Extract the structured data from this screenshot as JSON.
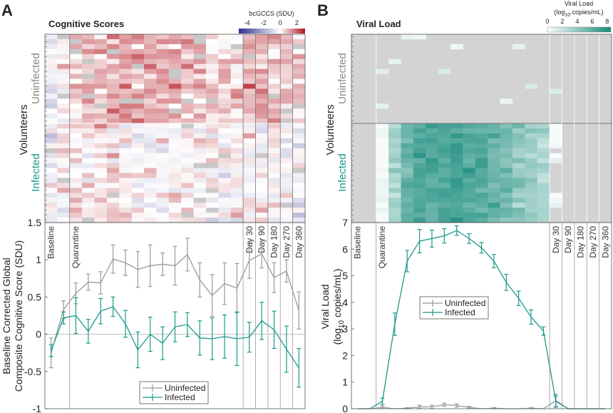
{
  "panels": {
    "a_label": "A",
    "b_label": "B"
  },
  "chart_data": [
    {
      "type": "heatmap",
      "panel": "A",
      "title": "Cognitive Scores",
      "colorbar_title": "bcGCCS (SDU)",
      "colorbar_ticks": [
        "-4",
        "-2",
        "0",
        "2"
      ],
      "colorbar_range": [
        -5,
        3
      ],
      "ylabel": "Volunteers",
      "groups": [
        "Uninfected",
        "Infected"
      ],
      "rows_per_group": [
        18,
        20
      ],
      "note": "cell values approximated from group means per timepoint"
    },
    {
      "type": "line",
      "panel": "A",
      "ylabel_line1": "Baseline Corrected Global",
      "ylabel_line2": "Composite Cognitive Score (SDU)",
      "ylim": [
        -1,
        1.5
      ],
      "yticks": [
        "1.5",
        "1",
        "0.5",
        "0",
        "-0.5",
        "-1"
      ],
      "ytick_values": [
        1.5,
        1,
        0.5,
        0,
        -0.5,
        -1
      ],
      "event_labels": [
        {
          "label": "Baseline",
          "index": 0
        },
        {
          "label": "Quarantine",
          "index": 2
        },
        {
          "label": "Day 30",
          "index": 16
        },
        {
          "label": "Day 90",
          "index": 17
        },
        {
          "label": "Day 180",
          "index": 18
        },
        {
          "label": "Day 270",
          "index": 19
        },
        {
          "label": "Day 360",
          "index": 20
        }
      ],
      "legend": "bottom-center",
      "series": [
        {
          "name": "Uninfected",
          "color": "#999999",
          "values": [
            -0.25,
            0.33,
            0.55,
            0.7,
            0.69,
            1.01,
            0.96,
            0.87,
            0.92,
            0.94,
            0.92,
            1.07,
            0.73,
            0.52,
            0.68,
            0.62,
            0.99,
            1.08,
            0.76,
            0.85,
            0.32
          ],
          "errors": [
            0.2,
            0.12,
            0.14,
            0.11,
            0.15,
            0.19,
            0.17,
            0.24,
            0.28,
            0.15,
            0.26,
            0.22,
            0.23,
            0.28,
            0.28,
            0.33,
            0.24,
            0.19,
            0.2,
            0.15,
            0.25
          ]
        },
        {
          "name": "Infected",
          "color": "#1b9a8a",
          "values": [
            -0.22,
            0.22,
            0.25,
            0.04,
            0.31,
            0.37,
            0.14,
            -0.21,
            0.0,
            -0.12,
            0.1,
            0.13,
            -0.05,
            -0.06,
            -0.03,
            -0.06,
            -0.04,
            0.18,
            0.06,
            -0.2,
            -0.45
          ],
          "errors": [
            0.08,
            0.08,
            0.24,
            0.16,
            0.17,
            0.13,
            0.18,
            0.24,
            0.23,
            0.22,
            0.2,
            0.16,
            0.23,
            0.28,
            0.29,
            0.36,
            0.2,
            0.25,
            0.25,
            0.31,
            0.26
          ]
        }
      ]
    },
    {
      "type": "heatmap",
      "panel": "B",
      "title": "Viral Load",
      "colorbar_title_line1": "Viral Load",
      "colorbar_title_line2": "(log10 copies/mL)",
      "colorbar_ticks": [
        "0",
        "2",
        "4",
        "6",
        "8"
      ],
      "colorbar_range": [
        0,
        8.5
      ],
      "ylabel": "Volunteers",
      "groups": [
        "Uninfected",
        "Infected"
      ],
      "rows_per_group": [
        18,
        20
      ]
    },
    {
      "type": "line",
      "panel": "B",
      "ylabel_line1": "Viral Load",
      "ylabel_line2": "(log10 copies/mL)",
      "ylim": [
        0,
        7
      ],
      "yticks": [
        "7",
        "6",
        "5",
        "4",
        "3",
        "2",
        "1",
        "0"
      ],
      "ytick_values": [
        7,
        6,
        5,
        4,
        3,
        2,
        1,
        0
      ],
      "event_labels": [
        {
          "label": "Baseline",
          "index": 0
        },
        {
          "label": "Quarantine",
          "index": 2
        },
        {
          "label": "Day 30",
          "index": 16
        },
        {
          "label": "Day 90",
          "index": 17
        },
        {
          "label": "Day 180",
          "index": 18
        },
        {
          "label": "Day 270",
          "index": 19
        },
        {
          "label": "Day 360",
          "index": 20
        }
      ],
      "legend": "center",
      "series": [
        {
          "name": "Uninfected",
          "color": "#999999",
          "values": [
            0,
            0,
            0.05,
            0,
            0.02,
            0.07,
            0.07,
            0.15,
            0.12,
            0.05,
            0,
            0.02,
            0,
            0,
            0.02,
            0,
            0.3,
            0,
            0,
            0,
            0
          ],
          "errors": [
            0,
            0,
            0.05,
            0,
            0.02,
            0.06,
            0.06,
            0.06,
            0.06,
            0.04,
            0,
            0.02,
            0,
            0,
            0.02,
            0,
            0.25,
            0,
            0,
            0,
            0
          ]
        },
        {
          "name": "Infected",
          "color": "#1b9a8a",
          "values": [
            0,
            0,
            0.28,
            3.18,
            5.55,
            6.3,
            6.4,
            6.5,
            6.7,
            6.4,
            6.05,
            5.55,
            4.75,
            4.15,
            3.45,
            2.92,
            0.28,
            0,
            0,
            0,
            0
          ],
          "errors": [
            0,
            0,
            0.12,
            0.42,
            0.4,
            0.44,
            0.32,
            0.27,
            0.18,
            0.18,
            0.2,
            0.25,
            0.3,
            0.27,
            0.27,
            0.16,
            0.2,
            0,
            0,
            0,
            0
          ]
        }
      ]
    }
  ]
}
